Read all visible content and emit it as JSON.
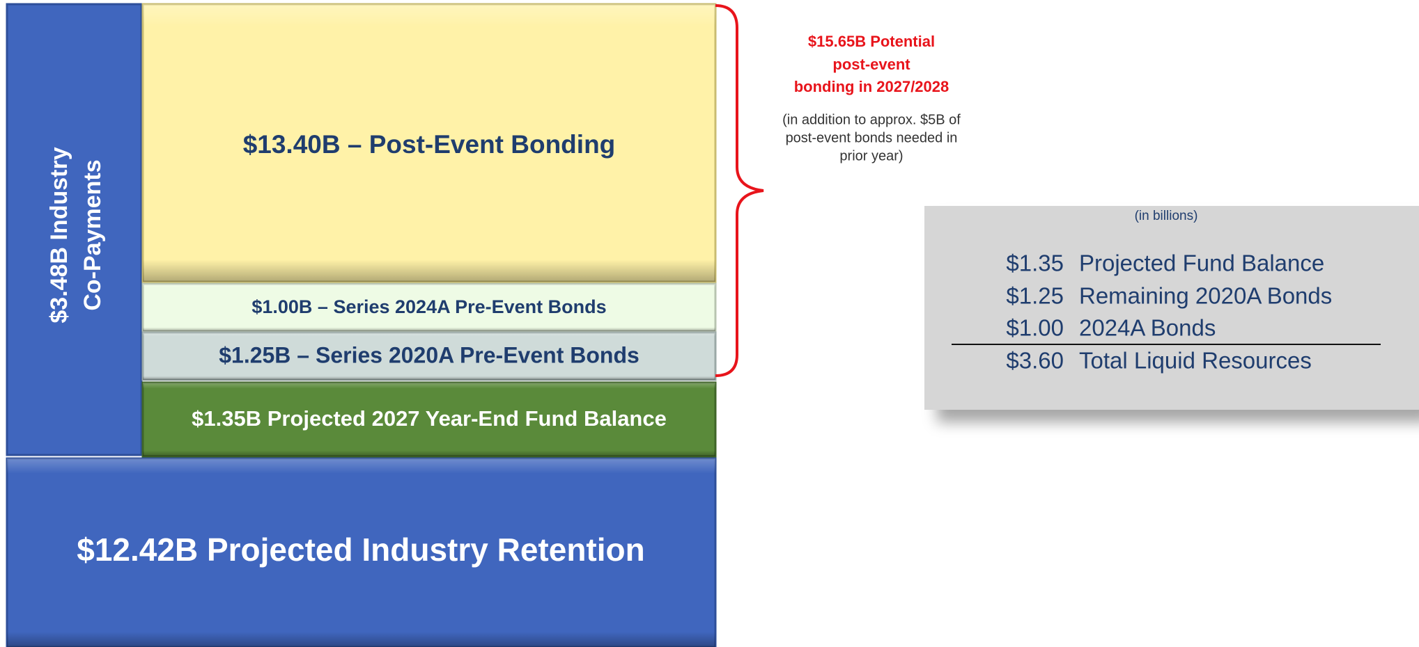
{
  "blocks": {
    "copayments": {
      "lines": [
        "$3.48B Industry",
        "Co-Payments"
      ]
    },
    "post_event": {
      "label": "$13.40B – Post-Event Bonding"
    },
    "series_2024a": {
      "label": "$1.00B – Series 2024A Pre-Event Bonds"
    },
    "series_2020a": {
      "label": "$1.25B – Series 2020A Pre-Event Bonds"
    },
    "fund_balance": {
      "label": "$1.35B Projected 2027 Year-End Fund Balance"
    },
    "retention": {
      "label": "$12.42B Projected Industry Retention"
    }
  },
  "annotation": {
    "title_lines": [
      "$15.65B Potential",
      "post-event",
      "bonding in 2027/2028"
    ],
    "note_lines": [
      "(in addition to approx. $5B of",
      "post-event bonds needed in",
      "prior year)"
    ]
  },
  "table": {
    "caption": "(in billions)",
    "rows": [
      [
        "$1.35",
        "Projected Fund Balance"
      ],
      [
        "$1.25",
        "Remaining 2020A Bonds"
      ],
      [
        "$1.00",
        "2024A Bonds"
      ]
    ],
    "total": [
      "$3.60",
      "Total Liquid Resources"
    ]
  }
}
